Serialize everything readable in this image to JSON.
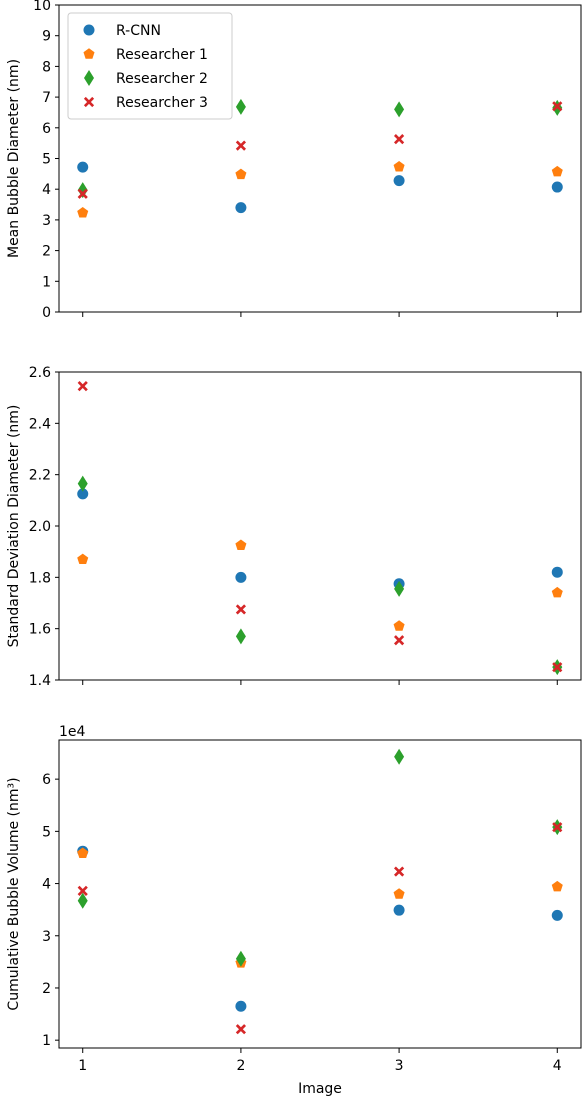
{
  "chart_data": [
    {
      "type": "scatter",
      "xlabel": "",
      "ylabel": "Mean Bubble Diameter (nm)",
      "ylim": [
        0,
        10
      ],
      "yticks": [
        0,
        1,
        2,
        3,
        4,
        5,
        6,
        7,
        8,
        9,
        10
      ],
      "x": [
        1,
        2,
        3,
        4
      ],
      "xticks_labeled": false,
      "grid": false,
      "legend": "top-left",
      "series": [
        {
          "name": "R-CNN",
          "color": "#1f77b4",
          "marker": "circle",
          "values": [
            4.72,
            3.4,
            4.28,
            4.07
          ]
        },
        {
          "name": "Researcher 1",
          "color": "#ff7f0e",
          "marker": "pentagon",
          "values": [
            3.23,
            4.48,
            4.73,
            4.57
          ]
        },
        {
          "name": "Researcher 2",
          "color": "#2ca02c",
          "marker": "thin-diamond",
          "values": [
            3.97,
            6.68,
            6.6,
            6.65
          ]
        },
        {
          "name": "Researcher 3",
          "color": "#d62728",
          "marker": "x-filled",
          "values": [
            3.85,
            5.42,
            5.63,
            6.7
          ]
        }
      ]
    },
    {
      "type": "scatter",
      "xlabel": "",
      "ylabel": "Standard Deviation Diameter (nm)",
      "ylim": [
        1.4,
        2.6
      ],
      "yticks": [
        1.4,
        1.6,
        1.8,
        2.0,
        2.2,
        2.4,
        2.6
      ],
      "x": [
        1,
        2,
        3,
        4
      ],
      "xticks_labeled": false,
      "grid": false,
      "legend": "none",
      "series": [
        {
          "name": "R-CNN",
          "color": "#1f77b4",
          "marker": "circle",
          "values": [
            2.125,
            1.8,
            1.775,
            1.82
          ]
        },
        {
          "name": "Researcher 1",
          "color": "#ff7f0e",
          "marker": "pentagon",
          "values": [
            1.87,
            1.925,
            1.61,
            1.74
          ]
        },
        {
          "name": "Researcher 2",
          "color": "#2ca02c",
          "marker": "thin-diamond",
          "values": [
            2.165,
            1.57,
            1.755,
            1.45
          ]
        },
        {
          "name": "Researcher 3",
          "color": "#d62728",
          "marker": "x-filled",
          "values": [
            2.545,
            1.675,
            1.555,
            1.45
          ]
        }
      ]
    },
    {
      "type": "scatter",
      "xlabel": "Image",
      "ylabel": "Cumulative Bubble Volume (nm³)",
      "offset_text": "1e4",
      "ylim": [
        0.85,
        6.75
      ],
      "yticks": [
        1,
        2,
        3,
        4,
        5,
        6
      ],
      "x": [
        1,
        2,
        3,
        4
      ],
      "xticks_labeled": true,
      "xtick_labels": [
        "1",
        "2",
        "3",
        "4"
      ],
      "grid": false,
      "legend": "none",
      "series": [
        {
          "name": "R-CNN",
          "color": "#1f77b4",
          "marker": "circle",
          "values": [
            4.62,
            1.65,
            3.49,
            3.39
          ]
        },
        {
          "name": "Researcher 1",
          "color": "#ff7f0e",
          "marker": "pentagon",
          "values": [
            4.58,
            2.48,
            3.8,
            3.94
          ]
        },
        {
          "name": "Researcher 2",
          "color": "#2ca02c",
          "marker": "thin-diamond",
          "values": [
            3.67,
            2.56,
            6.43,
            5.08
          ]
        },
        {
          "name": "Researcher 3",
          "color": "#d62728",
          "marker": "x-filled",
          "values": [
            3.86,
            1.21,
            4.23,
            5.08
          ]
        }
      ]
    }
  ]
}
